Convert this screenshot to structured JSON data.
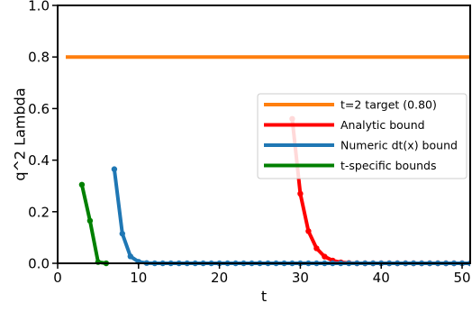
{
  "chart_data": {
    "type": "line",
    "xlabel": "t",
    "ylabel": "q^2 Lambda",
    "xlim": [
      0,
      51
    ],
    "ylim": [
      0,
      1.0
    ],
    "xticks": [
      0,
      10,
      20,
      30,
      40,
      50
    ],
    "yticks": [
      0.0,
      0.2,
      0.4,
      0.6,
      0.8,
      1.0
    ],
    "xtick_labels": [
      "0",
      "10",
      "20",
      "30",
      "40",
      "50"
    ],
    "ytick_labels": [
      "0.0",
      "0.2",
      "0.4",
      "0.6",
      "0.8",
      "1.0"
    ],
    "grid": false,
    "legend_position": "center-right",
    "series": [
      {
        "name": "t=2 target (0.80)",
        "color": "#ff7f0e",
        "markers": false,
        "x": [
          1,
          51
        ],
        "y": [
          0.8,
          0.8
        ]
      },
      {
        "name": "Analytic bound",
        "color": "#ff0000",
        "markers": true,
        "x": [
          29,
          30,
          31,
          32,
          33,
          34,
          35,
          36,
          37,
          38,
          39,
          40,
          41,
          42,
          43,
          44,
          45,
          46,
          47,
          48,
          49,
          50,
          51
        ],
        "y": [
          0.56,
          0.27,
          0.125,
          0.058,
          0.026,
          0.011,
          0.004,
          0.001,
          0,
          0,
          0,
          0,
          0,
          0,
          0,
          0,
          0,
          0,
          0,
          0,
          0,
          0,
          0
        ]
      },
      {
        "name": "Numeric dt(x) bound",
        "color": "#1f77b4",
        "markers": true,
        "x": [
          7,
          8,
          9,
          10,
          11,
          12,
          13,
          14,
          15,
          16,
          17,
          18,
          19,
          20,
          21,
          22,
          23,
          24,
          25,
          26,
          27,
          28,
          29,
          30,
          31,
          32,
          33,
          34,
          35,
          36,
          37,
          38,
          39,
          40,
          41,
          42,
          43,
          44,
          45,
          46,
          47,
          48,
          49,
          50,
          51
        ],
        "y": [
          0.365,
          0.115,
          0.027,
          0.006,
          0.001,
          0,
          0,
          0,
          0,
          0,
          0,
          0,
          0,
          0,
          0,
          0,
          0,
          0,
          0,
          0,
          0,
          0,
          0,
          0,
          0,
          0,
          0,
          0,
          0,
          0,
          0,
          0,
          0,
          0,
          0,
          0,
          0,
          0,
          0,
          0,
          0,
          0,
          0,
          0,
          0
        ]
      },
      {
        "name": "t-specific bounds",
        "color": "#008000",
        "markers": true,
        "x": [
          3,
          4,
          5,
          6
        ],
        "y": [
          0.305,
          0.165,
          0.005,
          0.0
        ]
      }
    ]
  }
}
